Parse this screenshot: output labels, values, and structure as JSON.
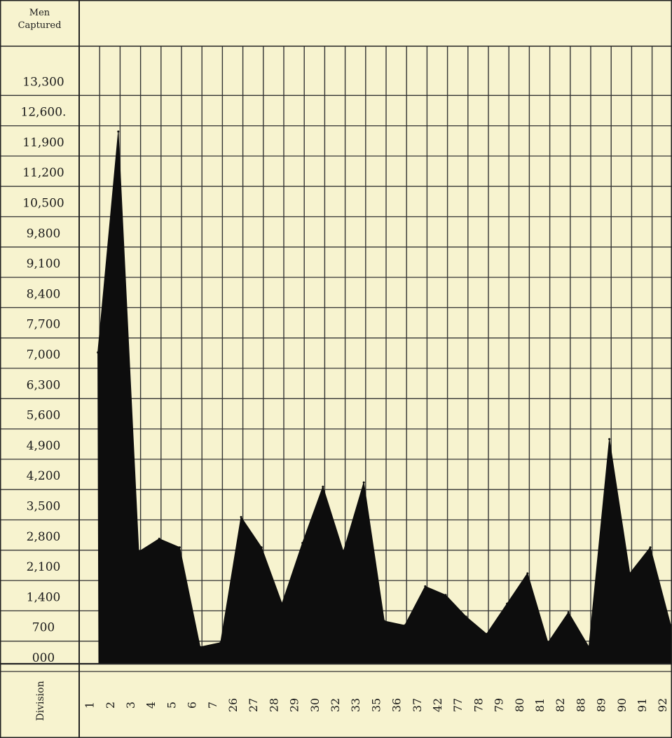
{
  "chart_data": {
    "type": "area",
    "title": "",
    "ylabel": "Men Captured",
    "xlabel": "Division",
    "ylim": [
      0,
      13300
    ],
    "y_ticks": [
      "000",
      "700",
      "1,400",
      "2,100",
      "2,800",
      "3,500",
      "4,200",
      "4,900",
      "5,600",
      "6,300",
      "7,000",
      "7,700",
      "8,400",
      "9,100",
      "9,800",
      "10,500",
      "11,200",
      "11,900",
      "12,600.",
      "13,300"
    ],
    "categories": [
      "1",
      "2",
      "3",
      "4",
      "5",
      "6",
      "7",
      "26",
      "27",
      "28",
      "29",
      "30",
      "32",
      "33",
      "35",
      "36",
      "37",
      "42",
      "77",
      "78",
      "79",
      "80",
      "81",
      "82",
      "88",
      "89",
      "90",
      "91",
      "92"
    ],
    "values": [
      6800,
      11900,
      2200,
      2500,
      2300,
      0,
      100,
      3000,
      2300,
      1000,
      2400,
      3700,
      2200,
      3800,
      600,
      500,
      1400,
      1200,
      700,
      300,
      1000,
      1700,
      100,
      800,
      0,
      4800,
      1700,
      2300,
      500
    ],
    "grid": true,
    "color": "#0d0d0d"
  }
}
